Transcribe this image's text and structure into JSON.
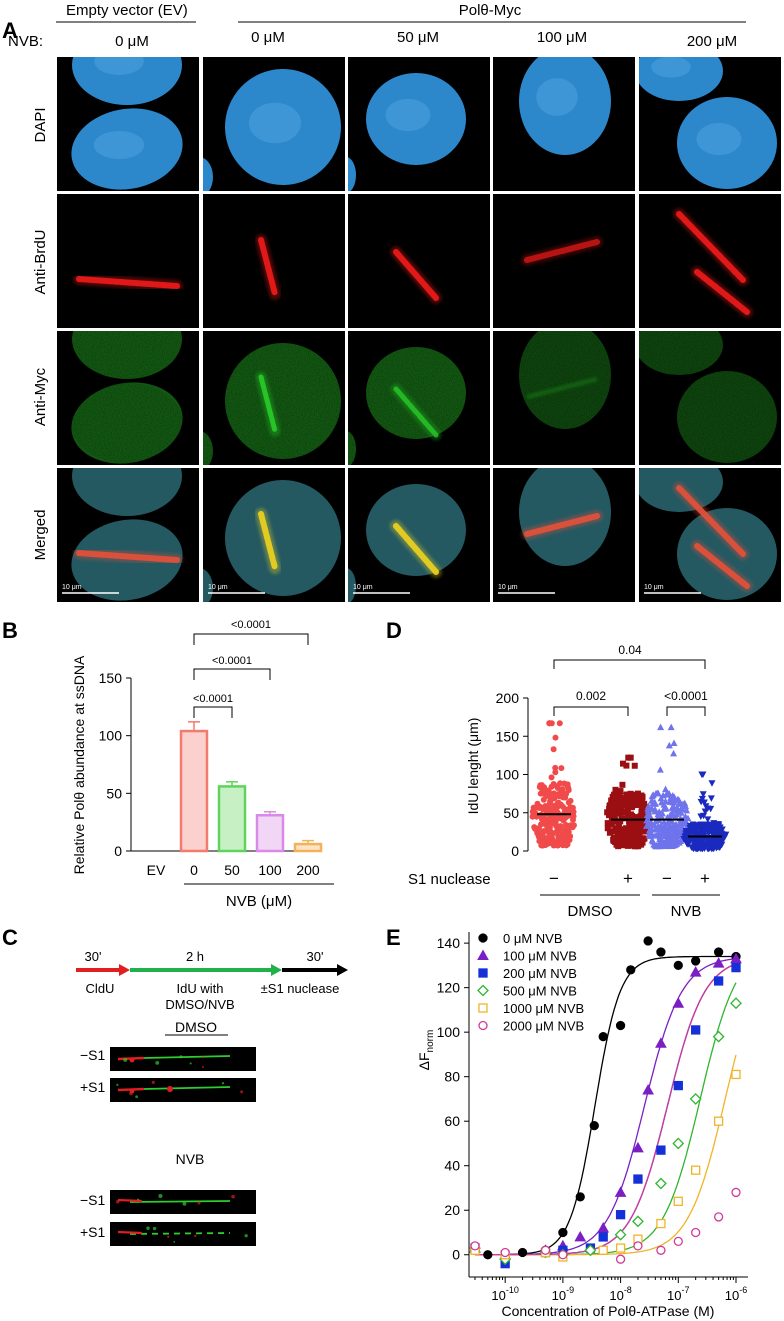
{
  "panelA": {
    "letter": "A",
    "group_ev": "Empty vector (EV)",
    "group_pol": "Polθ-Myc",
    "nvb_label": "NVB:",
    "conc": [
      "0 μM",
      "0 μM",
      "50 μM",
      "100 μM",
      "200 μM"
    ],
    "rows": [
      "DAPI",
      "Anti-BrdU",
      "Anti-Myc",
      "Merged"
    ],
    "scalebar": "10 μm",
    "colors": {
      "dapi": "#2f8fd6",
      "brdu": "#e01818",
      "myc": "#27c427",
      "merge_yellow": "#e8d020"
    }
  },
  "panelB": {
    "letter": "B",
    "ylabel": "Relative Polθ abundance at ssDNA",
    "xlabel": "NVB (μM)",
    "pvals": [
      "<0.0001",
      "<0.0001",
      "<0.0001"
    ],
    "ticks": [
      "0",
      "50",
      "100",
      "150"
    ]
  },
  "panelC": {
    "letter": "C",
    "durations": [
      "30'",
      "2 h",
      "30'"
    ],
    "steps": [
      "CldU",
      "IdU with",
      "DMSO/NVB",
      "±S1 nuclease"
    ],
    "group1": "DMSO",
    "group2": "NVB",
    "row_minus": "−S1",
    "row_plus": "+S1"
  },
  "panelD": {
    "letter": "D",
    "ylabel": "IdU lenght (μm)",
    "pvals": [
      "0.04",
      "0.002",
      "<0.0001"
    ],
    "s1_label": "S1 nuclease",
    "signs": [
      "−",
      "+",
      "−",
      "+"
    ],
    "group1": "DMSO",
    "group2": "NVB",
    "ticks": [
      "0",
      "50",
      "100",
      "150",
      "200"
    ]
  },
  "panelE": {
    "letter": "E",
    "ylabel_main": "ΔF",
    "ylabel_sub": "norm",
    "xlabel": "Concentration of Polθ-ATPase (M)",
    "yticks": [
      "0",
      "20",
      "40",
      "60",
      "80",
      "100",
      "120",
      "140"
    ],
    "xtick_exps": [
      "-10",
      "-9",
      "-8",
      "-7",
      "-6"
    ]
  },
  "chart_data": [
    {
      "type": "bar",
      "title": "",
      "ylabel": "Relative Polθ abundance at ssDNA",
      "xlabel": "NVB (μM)",
      "categories": [
        "EV",
        "0",
        "50",
        "100",
        "200"
      ],
      "values": [
        0,
        104,
        56,
        31,
        6
      ],
      "errors": [
        0,
        8,
        4,
        3,
        3
      ],
      "colors": [
        "#888888",
        "#f27a6e",
        "#5fd45a",
        "#d98ae6",
        "#f3b25a"
      ],
      "ylim": [
        0,
        150
      ],
      "grid": false
    },
    {
      "type": "scatter",
      "title": "",
      "ylabel": "IdU lenght (μm)",
      "categories": [
        "DMSO −",
        "DMSO +",
        "NVB −",
        "NVB +"
      ],
      "medians": [
        48,
        41,
        41,
        19
      ],
      "max": [
        167,
        122,
        162,
        100
      ],
      "colors": [
        "#f04a4a",
        "#9b0f12",
        "#6f73ec",
        "#1a2abf"
      ],
      "markers": [
        "circle",
        "square",
        "triangle-up",
        "triangle-down"
      ],
      "ylim": [
        0,
        200
      ],
      "grid": false
    },
    {
      "type": "scatter",
      "title": "",
      "xlabel": "Concentration of Polθ-ATPase (M)",
      "ylabel": "ΔF norm",
      "xscale": "log",
      "xlim": [
        3e-11,
        1e-06
      ],
      "ylim": [
        -10,
        145
      ],
      "legend": "top-left",
      "grid": false,
      "series": [
        {
          "name": "0 μM NVB",
          "color": "#000000",
          "marker": "circle-filled",
          "x": [
            3e-11,
            5e-11,
            1e-10,
            2e-10,
            5e-10,
            1e-09,
            2e-09,
            3.5e-09,
            5e-09,
            1e-08,
            1.5e-08,
            3e-08,
            5e-08,
            1e-07,
            2e-07,
            5e-07,
            1e-06
          ],
          "y": [
            2,
            0,
            -1,
            1,
            2,
            10,
            26,
            58,
            98,
            103,
            128,
            141,
            136,
            130,
            132,
            136,
            134
          ]
        },
        {
          "name": "100 μM NVB",
          "color": "#7b1fc4",
          "marker": "triangle-filled",
          "x": [
            3e-11,
            1e-10,
            5e-10,
            1e-09,
            2e-09,
            5e-09,
            1e-08,
            2e-08,
            3e-08,
            5e-08,
            1e-07,
            2e-07,
            5e-07,
            1e-06
          ],
          "y": [
            3,
            0,
            2,
            4,
            8,
            12,
            28,
            48,
            74,
            95,
            113,
            127,
            131,
            133
          ]
        },
        {
          "name": "200 μM NVB",
          "color": "#1530d6",
          "marker": "square-filled",
          "x": [
            3e-11,
            1e-10,
            5e-10,
            1e-09,
            3e-09,
            5e-09,
            1e-08,
            2e-08,
            5e-08,
            1e-07,
            2e-07,
            5e-07,
            1e-06
          ],
          "y": [
            3,
            -4,
            1,
            2,
            3,
            8,
            18,
            34,
            47,
            76,
            101,
            123,
            129
          ]
        },
        {
          "name": "500 μM NVB",
          "color": "#2fb52f",
          "marker": "diamond-open",
          "x": [
            3e-11,
            1e-10,
            5e-10,
            1e-09,
            3e-09,
            1e-08,
            2e-08,
            5e-08,
            1e-07,
            2e-07,
            5e-07,
            1e-06
          ],
          "y": [
            3,
            -2,
            1,
            0,
            2,
            9,
            15,
            32,
            50,
            70,
            98,
            113
          ]
        },
        {
          "name": "1000 μM NVB",
          "color": "#f0b429",
          "marker": "square-open",
          "x": [
            3e-11,
            1e-10,
            5e-10,
            1e-09,
            5e-09,
            1e-08,
            2e-08,
            5e-08,
            1e-07,
            2e-07,
            5e-07,
            1e-06
          ],
          "y": [
            2,
            0,
            1,
            -1,
            2,
            3,
            7,
            14,
            24,
            38,
            60,
            81
          ]
        },
        {
          "name": "2000 μM NVB",
          "color": "#d03a9b",
          "marker": "circle-open",
          "x": [
            3e-11,
            1e-10,
            5e-10,
            1e-09,
            1e-08,
            2e-08,
            5e-08,
            1e-07,
            2e-07,
            5e-07,
            1e-06
          ],
          "y": [
            4,
            1,
            2,
            0,
            -2,
            4,
            2,
            6,
            10,
            17,
            28
          ]
        }
      ]
    }
  ]
}
